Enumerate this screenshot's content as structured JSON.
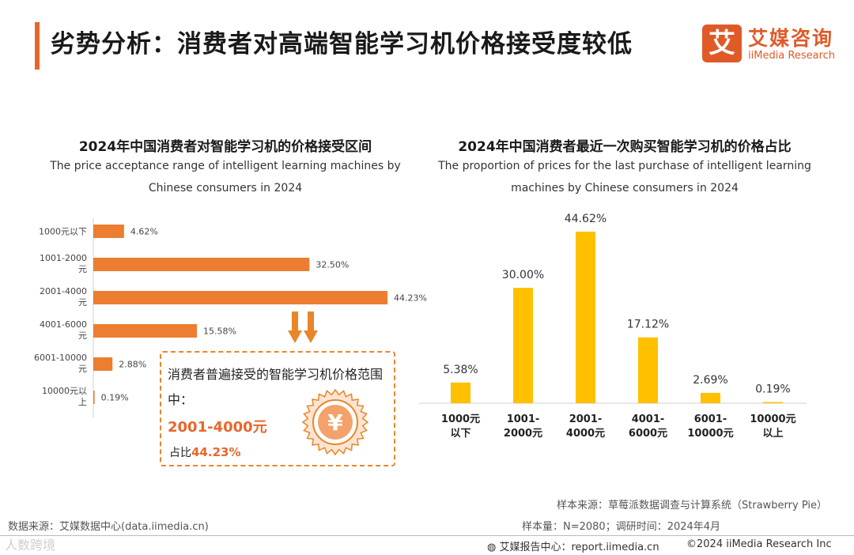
{
  "page": {
    "title": "劣势分析：消费者对高端智能学习机价格接受度较低",
    "logo_cn": "艾媒咨询",
    "logo_en": "iiMedia Research",
    "logo_mark": "艾",
    "accent": "#E8662A"
  },
  "chart_data": [
    {
      "type": "bar",
      "orientation": "horizontal",
      "title": "2024年中国消费者对智能学习机的价格接受区间",
      "subtitle_line1": "The price acceptance range of intelligent learning machines by",
      "subtitle_line2": "Chinese consumers in 2024",
      "categories": [
        [
          "1000元以下"
        ],
        [
          "1001-2000",
          "元"
        ],
        [
          "2001-4000",
          "元"
        ],
        [
          "4001-6000",
          "元"
        ],
        [
          "6001-10000",
          "元"
        ],
        [
          "10000元以",
          "上"
        ]
      ],
      "values": [
        4.62,
        32.5,
        44.23,
        15.58,
        2.88,
        0.19
      ],
      "labels": [
        "4.62%",
        "32.50%",
        "44.23%",
        "15.58%",
        "2.88%",
        "0.19%"
      ],
      "color": "#ED7D31",
      "xlim": [
        0,
        44.23
      ]
    },
    {
      "type": "bar",
      "orientation": "vertical",
      "title": "2024年中国消费者最近一次购买智能学习机的价格占比",
      "subtitle_line1": "The proportion of prices for the last purchase of intelligent learning",
      "subtitle_line2": "machines by Chinese consumers in 2024",
      "categories": [
        [
          "1000元",
          "以下"
        ],
        [
          "1001-",
          "2000元"
        ],
        [
          "2001-",
          "4000元"
        ],
        [
          "4001-",
          "6000元"
        ],
        [
          "6001-",
          "10000元"
        ],
        [
          "10000元",
          "以上"
        ]
      ],
      "values": [
        5.38,
        30.0,
        44.62,
        17.12,
        2.69,
        0.19
      ],
      "labels": [
        "5.38%",
        "30.00%",
        "44.62%",
        "17.12%",
        "2.69%",
        "0.19%"
      ],
      "color": "#FFC000",
      "ylim": [
        0,
        44.62
      ]
    }
  ],
  "callout": {
    "text": "消费者普遍接受的智能学习机价格范围中：",
    "range": "2001-4000元",
    "share_prefix": "占比",
    "share_value": "44.23%",
    "coin_symbol": "¥"
  },
  "footer": {
    "source_left": "数据来源：艾媒数据中心(data.iimedia.cn)",
    "sample_source": "样本来源：草莓派数据调查与计算系统（Strawberry Pie）",
    "sample_size": "样本量：N=2080；调研时间：2024年4月",
    "report_center": "艾媒报告中心：report.iimedia.cn",
    "copyright": "©2024  iiMedia Research  Inc",
    "watermark": "人数跨境"
  }
}
